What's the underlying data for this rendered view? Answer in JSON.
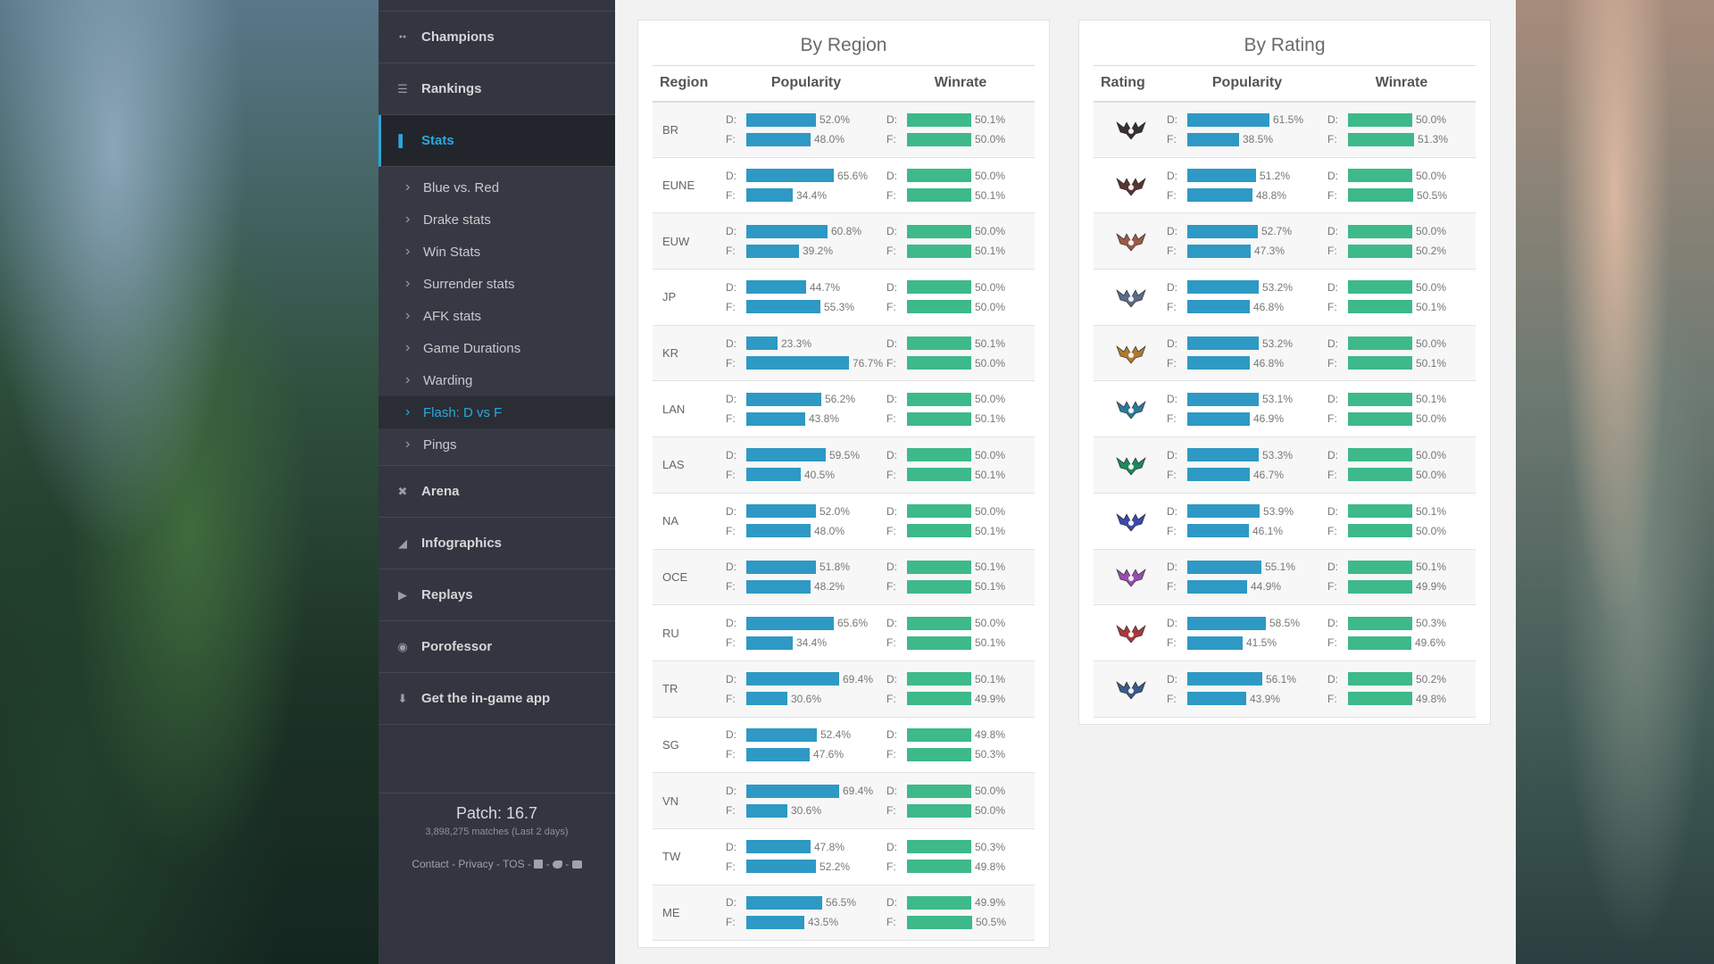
{
  "colors": {
    "blue_bar": "#2e99c4",
    "green_bar": "#3db98a",
    "accent": "#2ba8de"
  },
  "sidebar": {
    "nav_top": [
      {
        "label": "Champions",
        "icon": "users-icon"
      },
      {
        "label": "Rankings",
        "icon": "list-icon"
      },
      {
        "label": "Stats",
        "icon": "bar-chart-icon",
        "active": true
      }
    ],
    "sub_items": [
      {
        "label": "Blue vs. Red"
      },
      {
        "label": "Drake stats"
      },
      {
        "label": "Win Stats"
      },
      {
        "label": "Surrender stats"
      },
      {
        "label": "AFK stats"
      },
      {
        "label": "Game Durations"
      },
      {
        "label": "Warding"
      },
      {
        "label": "Flash: D vs F",
        "active": true
      },
      {
        "label": "Pings"
      }
    ],
    "nav_bottom": [
      {
        "label": "Arena",
        "icon": "crosshair-icon"
      },
      {
        "label": "Infographics",
        "icon": "area-chart-icon"
      },
      {
        "label": "Replays",
        "icon": "play-icon"
      },
      {
        "label": "Porofessor",
        "icon": "porofessor-icon"
      },
      {
        "label": "Get the in-game app",
        "icon": "download-icon"
      }
    ],
    "footer": {
      "patch": "Patch: 16.7",
      "matches": "3,898,275 matches (Last 2 days)",
      "contact": "Contact",
      "privacy": "Privacy",
      "tos": "TOS",
      "sep": " - "
    }
  },
  "region_panel": {
    "title": "By Region",
    "headers": {
      "label": "Region",
      "popularity": "Popularity",
      "winrate": "Winrate"
    },
    "rows": [
      {
        "label": "BR",
        "pop_d": "52.0%",
        "pop_f": "48.0%",
        "win_d": "50.1%",
        "win_f": "50.0%"
      },
      {
        "label": "EUNE",
        "pop_d": "65.6%",
        "pop_f": "34.4%",
        "win_d": "50.0%",
        "win_f": "50.1%"
      },
      {
        "label": "EUW",
        "pop_d": "60.8%",
        "pop_f": "39.2%",
        "win_d": "50.0%",
        "win_f": "50.1%"
      },
      {
        "label": "JP",
        "pop_d": "44.7%",
        "pop_f": "55.3%",
        "win_d": "50.0%",
        "win_f": "50.0%"
      },
      {
        "label": "KR",
        "pop_d": "23.3%",
        "pop_f": "76.7%",
        "win_d": "50.1%",
        "win_f": "50.0%"
      },
      {
        "label": "LAN",
        "pop_d": "56.2%",
        "pop_f": "43.8%",
        "win_d": "50.0%",
        "win_f": "50.1%"
      },
      {
        "label": "LAS",
        "pop_d": "59.5%",
        "pop_f": "40.5%",
        "win_d": "50.0%",
        "win_f": "50.1%"
      },
      {
        "label": "NA",
        "pop_d": "52.0%",
        "pop_f": "48.0%",
        "win_d": "50.0%",
        "win_f": "50.1%"
      },
      {
        "label": "OCE",
        "pop_d": "51.8%",
        "pop_f": "48.2%",
        "win_d": "50.1%",
        "win_f": "50.1%"
      },
      {
        "label": "RU",
        "pop_d": "65.6%",
        "pop_f": "34.4%",
        "win_d": "50.0%",
        "win_f": "50.1%"
      },
      {
        "label": "TR",
        "pop_d": "69.4%",
        "pop_f": "30.6%",
        "win_d": "50.1%",
        "win_f": "49.9%"
      },
      {
        "label": "SG",
        "pop_d": "52.4%",
        "pop_f": "47.6%",
        "win_d": "49.8%",
        "win_f": "50.3%"
      },
      {
        "label": "VN",
        "pop_d": "69.4%",
        "pop_f": "30.6%",
        "win_d": "50.0%",
        "win_f": "50.0%"
      },
      {
        "label": "TW",
        "pop_d": "47.8%",
        "pop_f": "52.2%",
        "win_d": "50.3%",
        "win_f": "49.8%"
      },
      {
        "label": "ME",
        "pop_d": "56.5%",
        "pop_f": "43.5%",
        "win_d": "49.9%",
        "win_f": "50.5%"
      }
    ]
  },
  "rating_panel": {
    "title": "By Rating",
    "headers": {
      "label": "Rating",
      "popularity": "Popularity",
      "winrate": "Winrate"
    },
    "rows": [
      {
        "icon": "iron-rank-icon",
        "color": "#3a3030",
        "pop_d": "61.5%",
        "pop_f": "38.5%",
        "win_d": "50.0%",
        "win_f": "51.3%"
      },
      {
        "icon": "bronze-rank-icon",
        "color": "#5a3530",
        "pop_d": "51.2%",
        "pop_f": "48.8%",
        "win_d": "50.0%",
        "win_f": "50.5%"
      },
      {
        "icon": "silver-rank-icon",
        "color": "#9a5a48",
        "pop_d": "52.7%",
        "pop_f": "47.3%",
        "win_d": "50.0%",
        "win_f": "50.2%"
      },
      {
        "icon": "gold-rank-icon",
        "color": "#5a6a8a",
        "pop_d": "53.2%",
        "pop_f": "46.8%",
        "win_d": "50.0%",
        "win_f": "50.1%"
      },
      {
        "icon": "platinum-rank-icon",
        "color": "#b07a30",
        "pop_d": "53.2%",
        "pop_f": "46.8%",
        "win_d": "50.0%",
        "win_f": "50.1%"
      },
      {
        "icon": "emerald-rank-icon",
        "color": "#2a7a9a",
        "pop_d": "53.1%",
        "pop_f": "46.9%",
        "win_d": "50.1%",
        "win_f": "50.0%"
      },
      {
        "icon": "diamond-rank-icon",
        "color": "#1a8a5a",
        "pop_d": "53.3%",
        "pop_f": "46.7%",
        "win_d": "50.0%",
        "win_f": "50.0%"
      },
      {
        "icon": "master-rank-icon",
        "color": "#3a4aaa",
        "pop_d": "53.9%",
        "pop_f": "46.1%",
        "win_d": "50.1%",
        "win_f": "50.0%"
      },
      {
        "icon": "grandmaster-rank-icon",
        "color": "#9a4ab0",
        "pop_d": "55.1%",
        "pop_f": "44.9%",
        "win_d": "50.1%",
        "win_f": "49.9%"
      },
      {
        "icon": "challenger-rank-icon",
        "color": "#a83a3a",
        "pop_d": "58.5%",
        "pop_f": "41.5%",
        "win_d": "50.3%",
        "win_f": "49.6%"
      },
      {
        "icon": "all-ranks-icon",
        "color": "#3a5a8a",
        "pop_d": "56.1%",
        "pop_f": "43.9%",
        "win_d": "50.2%",
        "win_f": "49.8%"
      }
    ]
  },
  "letters": {
    "d": "D:",
    "f": "F:"
  }
}
